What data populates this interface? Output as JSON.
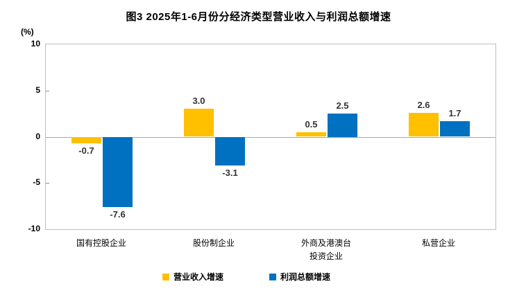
{
  "chart_data": {
    "type": "bar",
    "title": "图3 2025年1-6月份分经济类型营业收入与利润总额增速",
    "unit_label": "(%)",
    "xlabel": "",
    "ylabel": "%",
    "ylim": [
      -10,
      10
    ],
    "yticks": [
      10,
      5,
      0,
      -5,
      -10
    ],
    "grid": false,
    "legend_position": "bottom",
    "categories": [
      "国有控股企业",
      "股份制企业",
      "外商及港澳台\n投资企业",
      "私营企业"
    ],
    "series": [
      {
        "name": "营业收入增速",
        "color": "#FFC000",
        "values": [
          -0.7,
          3.0,
          0.5,
          2.6
        ]
      },
      {
        "name": "利润总额增速",
        "color": "#0070C0",
        "values": [
          -7.6,
          -3.1,
          2.5,
          1.7
        ]
      }
    ],
    "value_decimals": 1
  }
}
